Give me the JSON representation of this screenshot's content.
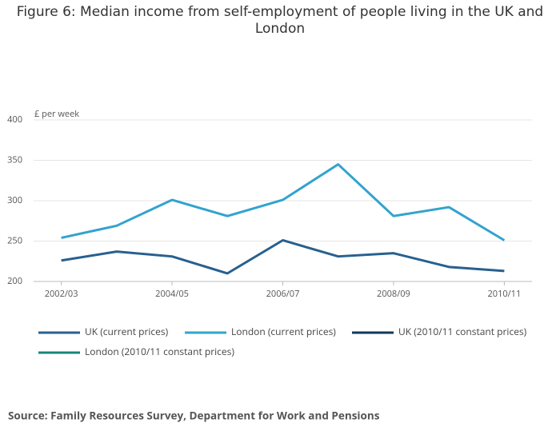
{
  "chart_data": {
    "type": "line",
    "title": "Figure 6: Median income from self-employment of people living in the UK and London",
    "y_axis_label": "£ per week",
    "categories": [
      "2002/03",
      null,
      "2004/05",
      null,
      "2006/07",
      null,
      "2008/09",
      null,
      "2010/11"
    ],
    "series": [
      {
        "name": "UK (current prices)",
        "color": "#27608f",
        "values": [
          226,
          237,
          231,
          210,
          251,
          231,
          235,
          218,
          213
        ]
      },
      {
        "name": "London (current prices)",
        "color": "#32a3cf",
        "values": [
          254,
          269,
          301,
          281,
          301,
          345,
          281,
          292,
          251
        ]
      },
      {
        "name": "UK (2010/11 constant prices)",
        "color": "#0f3a57",
        "values": [
          null,
          null,
          null,
          null,
          null,
          null,
          null,
          null,
          null
        ]
      },
      {
        "name": "London (2010/11 constant prices)",
        "color": "#16857a",
        "values": [
          null,
          null,
          null,
          null,
          null,
          null,
          null,
          null,
          null
        ]
      }
    ],
    "ylim": [
      200,
      400
    ],
    "yticks": [
      200,
      250,
      300,
      350,
      400
    ],
    "grid": true,
    "source": "Source: Family Resources Survey, Department for Work and Pensions"
  }
}
